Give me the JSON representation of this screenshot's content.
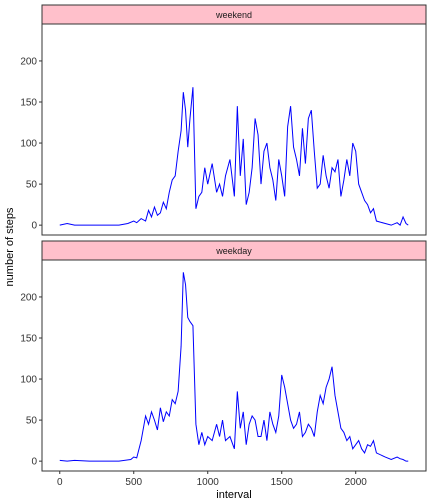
{
  "chart_data": {
    "type": "line",
    "xlabel": "interval",
    "ylabel": "number of steps",
    "xlim": [
      -120,
      2475
    ],
    "ylim": [
      -12,
      245
    ],
    "x_ticks": [
      0,
      500,
      1000,
      1500,
      2000
    ],
    "y_ticks": [
      0,
      50,
      100,
      150,
      200
    ],
    "grid": false,
    "line_color": "#0000FF",
    "strip_color": "#FFC0CB",
    "panels": [
      {
        "strip_label": "weekend",
        "x": [
          0,
          50,
          100,
          200,
          300,
          400,
          460,
          500,
          520,
          550,
          580,
          600,
          620,
          640,
          660,
          680,
          700,
          720,
          740,
          760,
          780,
          800,
          820,
          835,
          850,
          865,
          880,
          900,
          920,
          940,
          960,
          980,
          1000,
          1030,
          1060,
          1080,
          1100,
          1120,
          1150,
          1180,
          1200,
          1220,
          1240,
          1260,
          1280,
          1300,
          1320,
          1340,
          1360,
          1380,
          1400,
          1420,
          1440,
          1460,
          1480,
          1500,
          1520,
          1540,
          1560,
          1580,
          1600,
          1620,
          1640,
          1660,
          1680,
          1700,
          1720,
          1740,
          1760,
          1780,
          1800,
          1820,
          1840,
          1860,
          1880,
          1900,
          1920,
          1940,
          1960,
          1980,
          2000,
          2020,
          2040,
          2060,
          2080,
          2100,
          2120,
          2140,
          2200,
          2240,
          2280,
          2300,
          2320,
          2340,
          2355
        ],
        "y": [
          0,
          2,
          0,
          0,
          0,
          0,
          2,
          5,
          3,
          8,
          5,
          18,
          10,
          22,
          12,
          15,
          28,
          20,
          40,
          55,
          60,
          90,
          115,
          162,
          140,
          95,
          130,
          168,
          20,
          35,
          40,
          70,
          50,
          75,
          40,
          50,
          35,
          60,
          80,
          35,
          145,
          60,
          105,
          25,
          40,
          70,
          130,
          110,
          50,
          90,
          100,
          70,
          55,
          30,
          80,
          60,
          35,
          120,
          145,
          95,
          80,
          60,
          118,
          75,
          130,
          140,
          90,
          45,
          50,
          85,
          60,
          45,
          70,
          65,
          80,
          35,
          55,
          80,
          60,
          100,
          90,
          50,
          40,
          30,
          25,
          15,
          20,
          5,
          2,
          0,
          3,
          0,
          10,
          2,
          0
        ]
      },
      {
        "strip_label": "weekday",
        "x": [
          0,
          50,
          100,
          200,
          300,
          400,
          480,
          500,
          520,
          550,
          580,
          600,
          620,
          640,
          660,
          680,
          700,
          720,
          740,
          760,
          780,
          800,
          820,
          835,
          850,
          865,
          880,
          900,
          920,
          940,
          960,
          980,
          1000,
          1030,
          1060,
          1080,
          1100,
          1120,
          1150,
          1180,
          1200,
          1220,
          1240,
          1260,
          1280,
          1300,
          1320,
          1340,
          1360,
          1380,
          1400,
          1420,
          1440,
          1460,
          1480,
          1500,
          1520,
          1540,
          1560,
          1580,
          1600,
          1620,
          1640,
          1660,
          1680,
          1700,
          1720,
          1740,
          1760,
          1780,
          1800,
          1820,
          1840,
          1860,
          1880,
          1900,
          1920,
          1940,
          1960,
          1980,
          2000,
          2020,
          2040,
          2060,
          2080,
          2100,
          2120,
          2140,
          2200,
          2240,
          2280,
          2300,
          2320,
          2340,
          2355
        ],
        "y": [
          1,
          0,
          1,
          0,
          0,
          0,
          2,
          5,
          4,
          25,
          55,
          45,
          60,
          50,
          38,
          65,
          48,
          60,
          55,
          75,
          70,
          85,
          140,
          230,
          215,
          175,
          170,
          165,
          45,
          20,
          35,
          20,
          30,
          25,
          45,
          30,
          50,
          25,
          30,
          15,
          85,
          40,
          60,
          20,
          45,
          55,
          50,
          30,
          30,
          50,
          25,
          60,
          45,
          35,
          55,
          105,
          90,
          70,
          50,
          40,
          45,
          60,
          30,
          35,
          45,
          40,
          30,
          60,
          80,
          70,
          90,
          100,
          115,
          80,
          60,
          40,
          35,
          25,
          30,
          15,
          20,
          25,
          15,
          10,
          20,
          18,
          25,
          10,
          5,
          2,
          5,
          3,
          2,
          0,
          0
        ]
      }
    ]
  }
}
